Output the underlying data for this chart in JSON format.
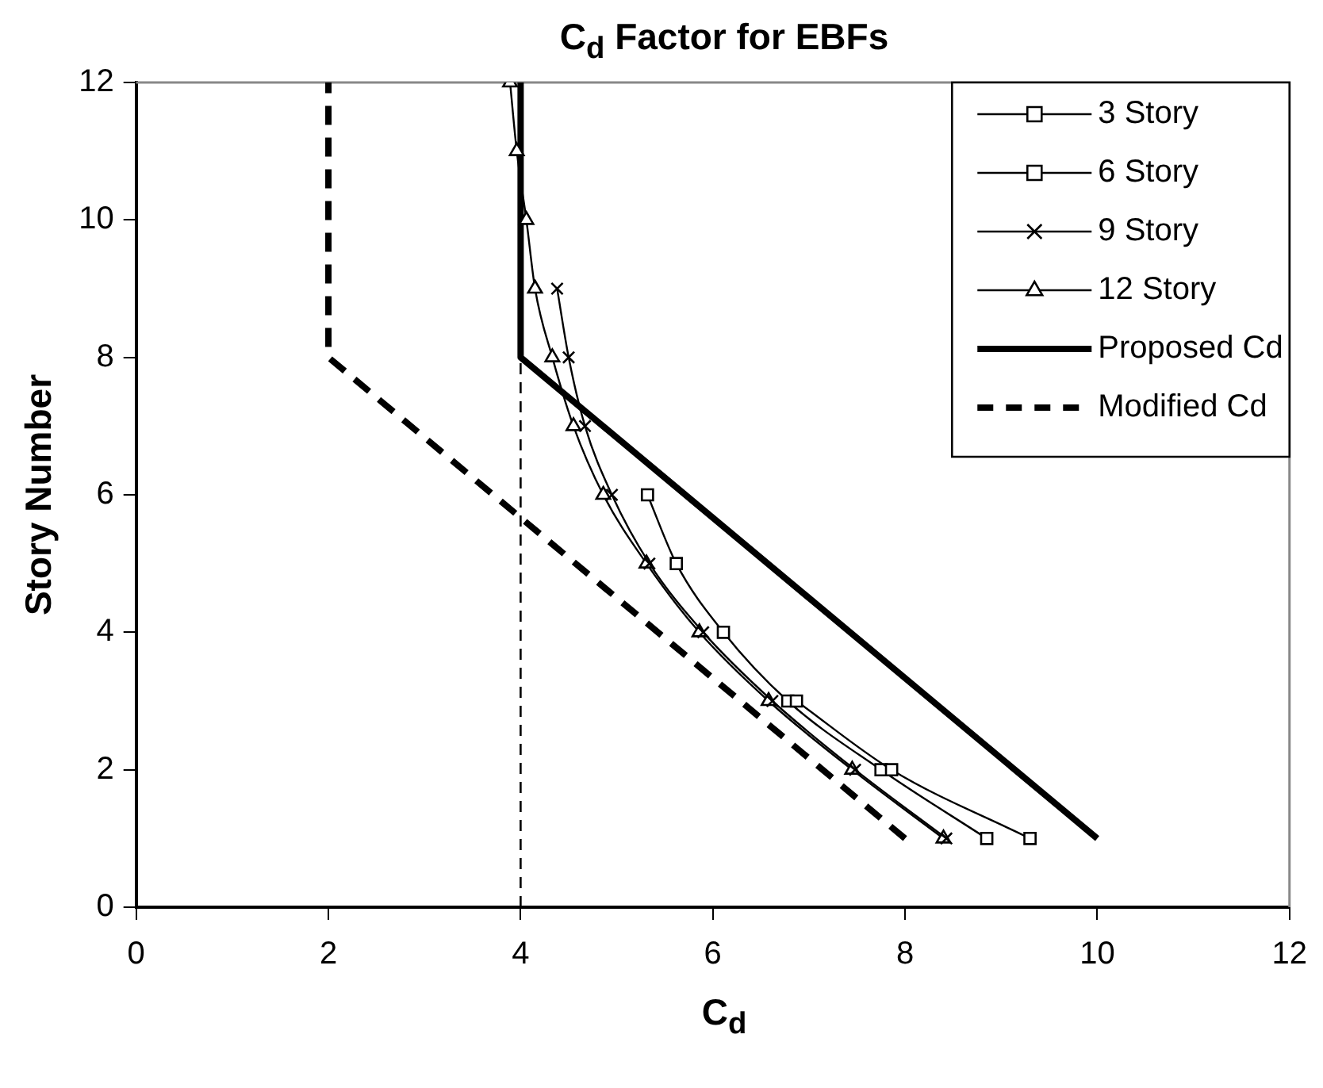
{
  "chart_data": {
    "type": "line",
    "title": "C$_{d}$ Factor for EBFs",
    "xlabel": "C$_{d}$",
    "ylabel": "Story Number",
    "xlim": [
      0,
      12
    ],
    "xticks": [
      0,
      2,
      4,
      6,
      8,
      10,
      12
    ],
    "ylim": [
      0,
      12
    ],
    "yticks": [
      0,
      2,
      4,
      6,
      8,
      10,
      12
    ],
    "grid": false,
    "legend": "top right",
    "series": [
      {
        "name": "3 Story",
        "color": "#000000",
        "marker": "square",
        "x": [
          9.3,
          7.86,
          6.87
        ],
        "values": [
          1,
          2,
          3
        ]
      },
      {
        "name": "6 Story",
        "color": "#000000",
        "marker": "square",
        "x": [
          8.85,
          7.75,
          6.78,
          6.11,
          5.62,
          5.32
        ],
        "values": [
          1,
          2,
          3,
          4,
          5,
          6
        ]
      },
      {
        "name": "9 Story",
        "color": "#000000",
        "marker": "cross",
        "x": [
          8.43,
          7.48,
          6.62,
          5.9,
          5.34,
          4.95,
          4.67,
          4.5,
          4.38
        ],
        "values": [
          1,
          2,
          3,
          4,
          5,
          6,
          7,
          8,
          9
        ]
      },
      {
        "name": "12 Story",
        "color": "#000000",
        "marker": "triangle",
        "x": [
          8.4,
          7.45,
          6.58,
          5.86,
          5.31,
          4.86,
          4.55,
          4.33,
          4.15,
          4.06,
          3.96,
          3.89
        ],
        "values": [
          1,
          2,
          3,
          4,
          5,
          6,
          7,
          8,
          9,
          10,
          11,
          12
        ]
      },
      {
        "name": "Proposed Cd",
        "color": "#000000",
        "marker": "none",
        "line_style": "solid",
        "x": [
          10,
          4,
          4
        ],
        "values": [
          1,
          8,
          12
        ]
      },
      {
        "name": "Modified Cd",
        "color": "#000000",
        "marker": "none",
        "line_style": "dashed",
        "x": [
          8,
          2,
          2
        ],
        "values": [
          1,
          8,
          12
        ]
      }
    ],
    "ref_lines": [
      {
        "axis": "x",
        "value": 4,
        "color": "#000000",
        "line_style": "dashed"
      }
    ]
  }
}
